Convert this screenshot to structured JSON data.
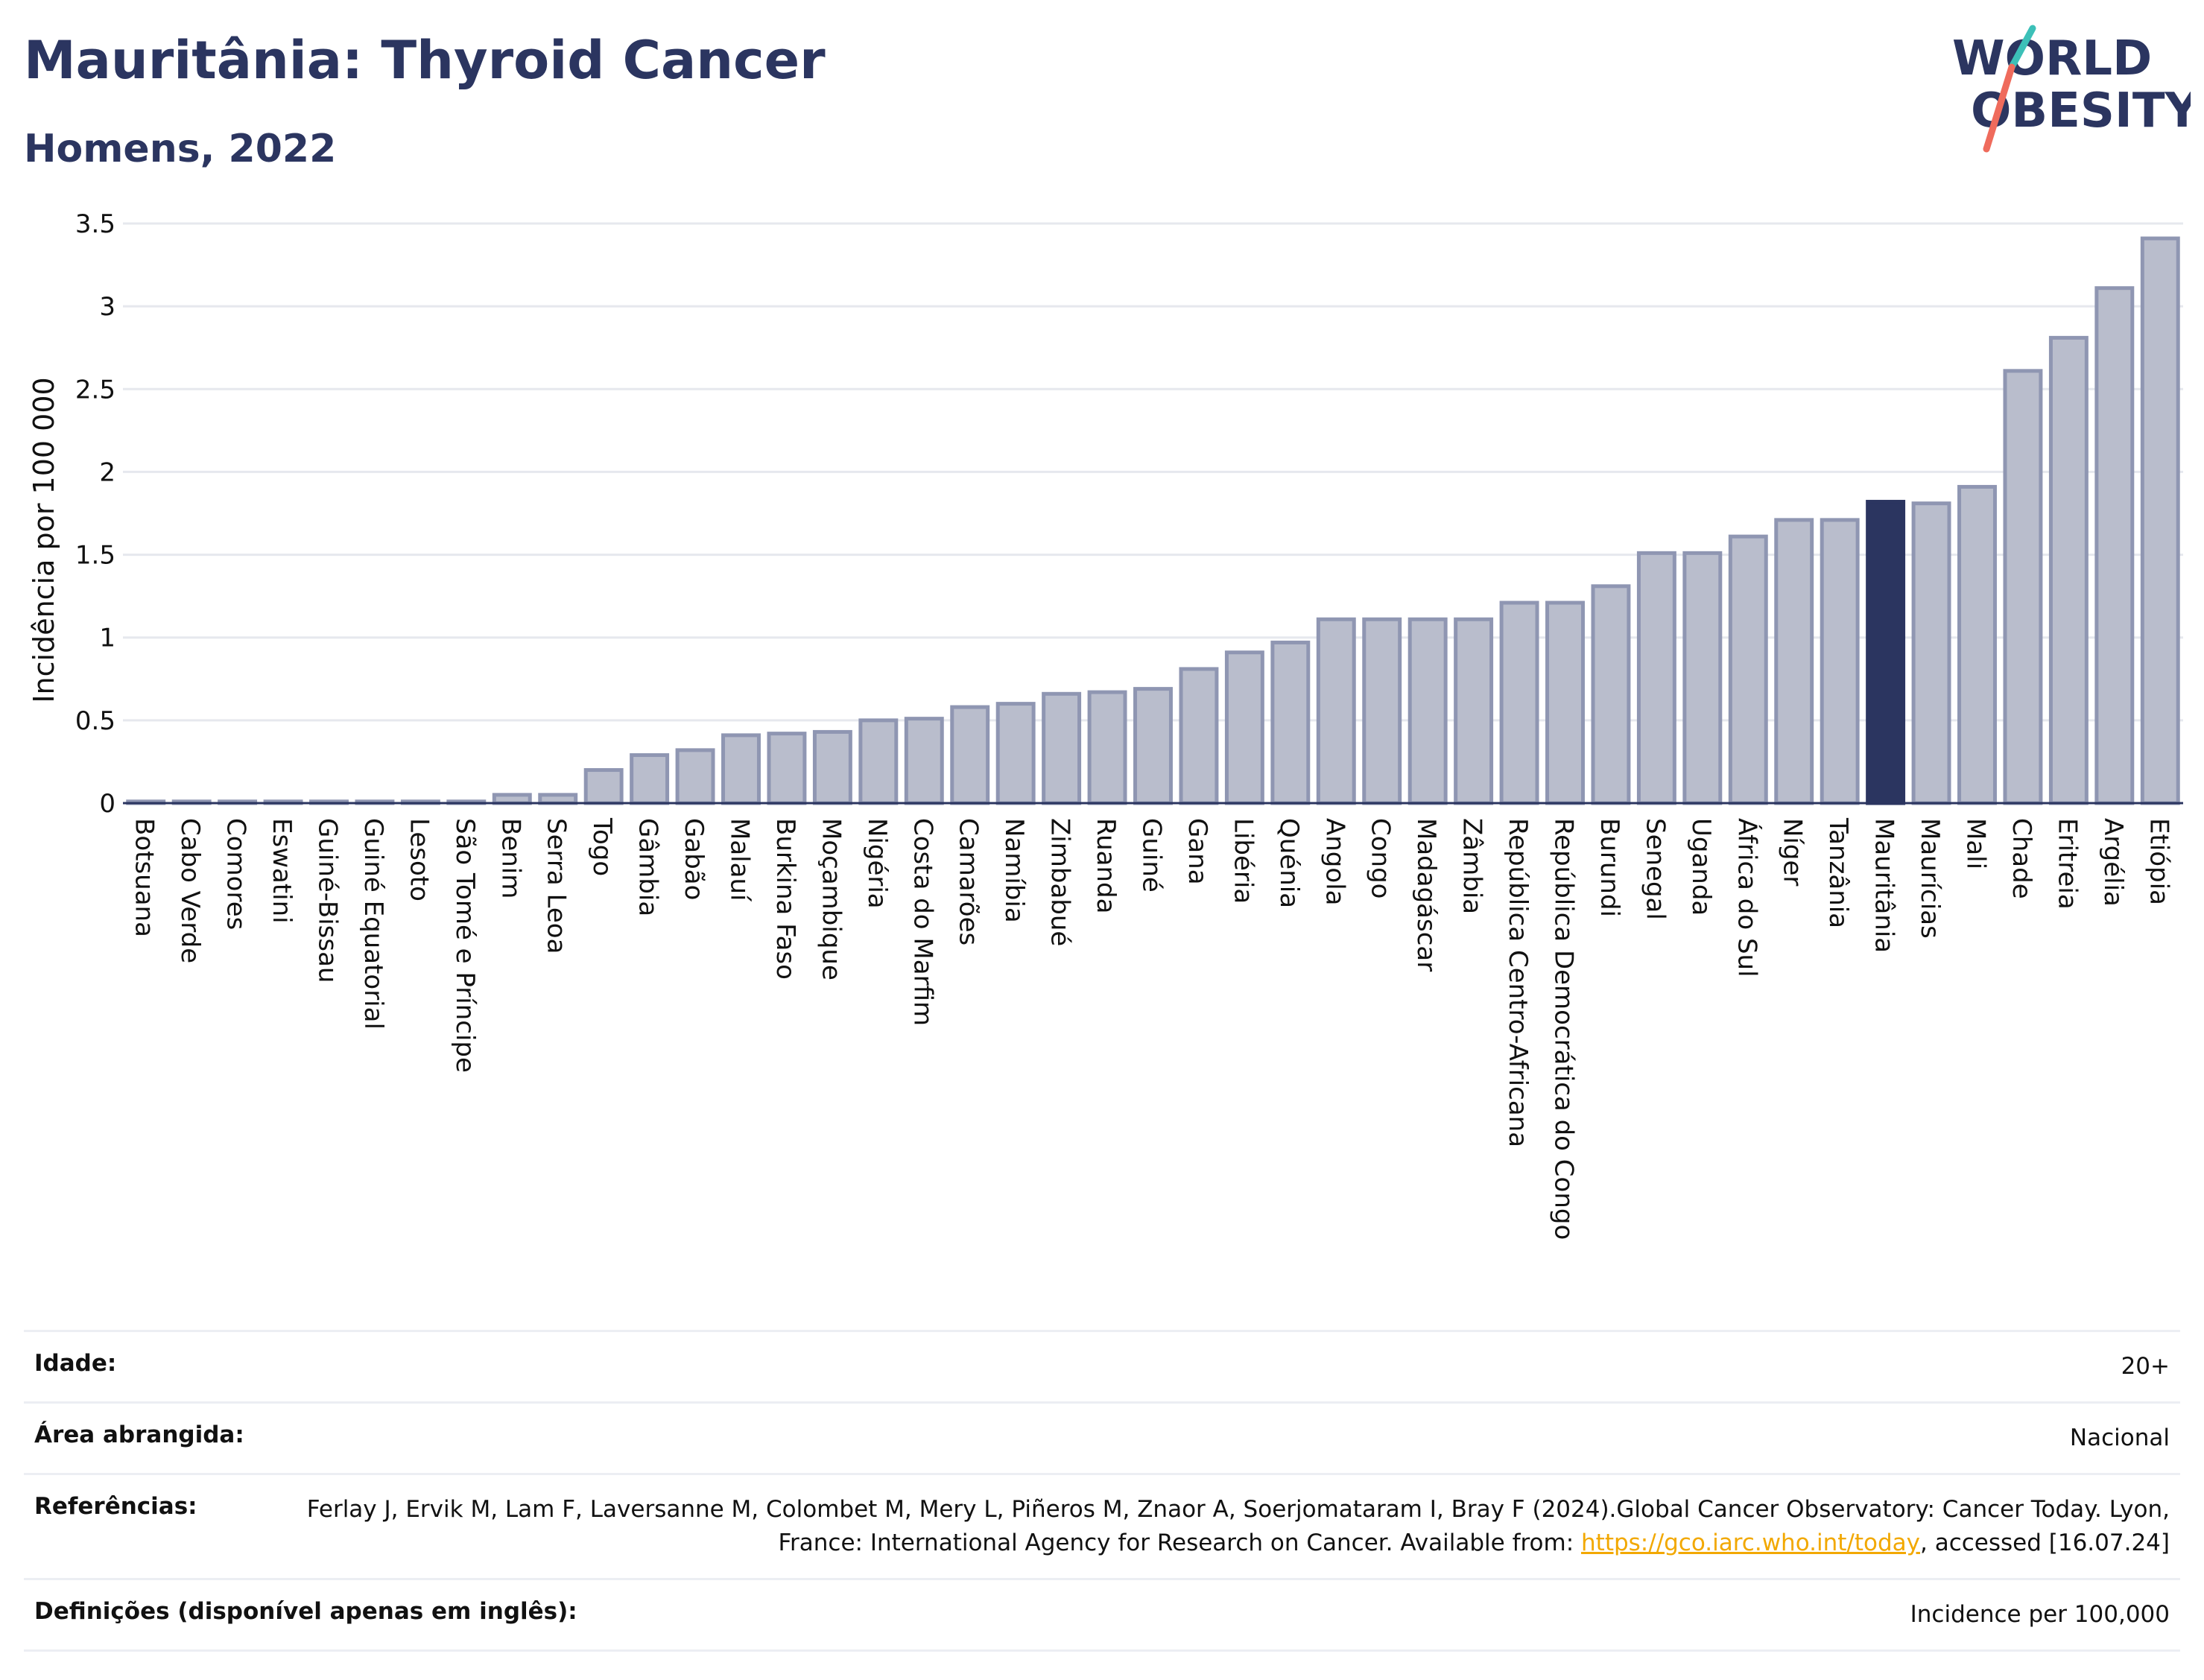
{
  "header": {
    "title": "Mauritânia: Thyroid Cancer",
    "subtitle": "Homens, 2022",
    "logo_line1": "WORLD",
    "logo_line2": "OBESITY"
  },
  "colors": {
    "bar": "#b9bdcc",
    "bar_edge": "#8f96b2",
    "highlight": "#2b3560",
    "grid": "#e6e8ee",
    "axis": "#2b3560",
    "logo_teal": "#3cc0b8",
    "logo_red": "#ef6b5c",
    "link": "#f2a800"
  },
  "chart_data": {
    "type": "bar",
    "ylabel": "Incidência por 100 000",
    "ylim": [
      0,
      3.5
    ],
    "yticks": [
      "0",
      "0.5",
      "1",
      "1.5",
      "2",
      "2.5",
      "3",
      "3.5"
    ],
    "grid": true,
    "highlight": "Mauritânia",
    "categories": [
      "Botsuana",
      "Cabo Verde",
      "Comores",
      "Eswatini",
      "Guiné-Bissau",
      "Guiné Equatorial",
      "Lesoto",
      "São Tomé e Príncipe",
      "Benim",
      "Serra Leoa",
      "Togo",
      "Gâmbia",
      "Gabão",
      "Malauí",
      "Burkina Faso",
      "Moçambique",
      "Nigéria",
      "Costa do Marfim",
      "Camarões",
      "Namíbia",
      "Zimbabué",
      "Ruanda",
      "Guiné",
      "Gana",
      "Libéria",
      "Quénia",
      "Angola",
      "Congo",
      "Madagáscar",
      "Zâmbia",
      "República Centro-Africana",
      "República Democrática do Congo",
      "Burundi",
      "Senegal",
      "Uganda",
      "África do Sul",
      "Níger",
      "Tanzânia",
      "Mauritânia",
      "Maurícias",
      "Mali",
      "Chade",
      "Eritreia",
      "Argélia",
      "Etiópia"
    ],
    "values": [
      0.01,
      0.01,
      0.01,
      0.01,
      0.01,
      0.01,
      0.01,
      0.01,
      0.05,
      0.05,
      0.2,
      0.29,
      0.32,
      0.41,
      0.42,
      0.43,
      0.5,
      0.51,
      0.58,
      0.6,
      0.66,
      0.67,
      0.69,
      0.81,
      0.91,
      0.97,
      1.11,
      1.11,
      1.11,
      1.11,
      1.21,
      1.21,
      1.31,
      1.51,
      1.51,
      1.61,
      1.71,
      1.71,
      1.82,
      1.81,
      1.91,
      2.61,
      2.81,
      3.11,
      3.41
    ]
  },
  "info": {
    "age_label": "Idade:",
    "age_value": "20+",
    "area_label": "Área abrangida:",
    "area_value": "Nacional",
    "ref_label": "Referências:",
    "ref_text": "Ferlay J, Ervik M, Lam F, Laversanne M, Colombet M, Mery L, Piñeros M, Znaor A, Soerjomataram I, Bray F (2024).Global Cancer Observatory: Cancer Today. Lyon, France: International Agency for Research on Cancer. Available from: ",
    "ref_link": "https://gco.iarc.who.int/today",
    "ref_tail": ", accessed [16.07.24]",
    "def_label": "Definições (disponível apenas em inglês):",
    "def_value": "Incidence per 100,000"
  }
}
